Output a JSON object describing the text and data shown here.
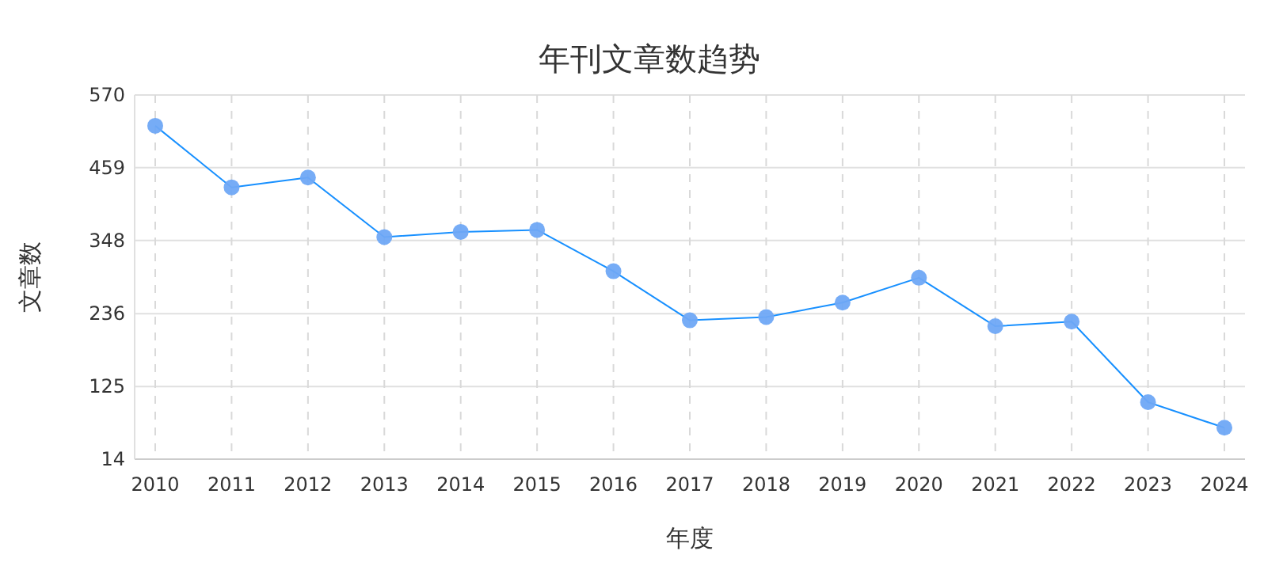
{
  "chart_data": {
    "type": "line",
    "title": "年刊文章数趋势",
    "xlabel": "年度",
    "ylabel": "文章数",
    "categories": [
      "2010",
      "2011",
      "2012",
      "2013",
      "2014",
      "2015",
      "2016",
      "2017",
      "2018",
      "2019",
      "2020",
      "2021",
      "2022",
      "2023",
      "2024"
    ],
    "series": [
      {
        "color": "#1890ff",
        "values": [
          523,
          429,
          444,
          353,
          361,
          364,
          301,
          226,
          231,
          253,
          291,
          217,
          224,
          101,
          62
        ]
      }
    ],
    "ylim": [
      14,
      570
    ],
    "yticks": [
      14,
      125,
      236,
      348,
      459,
      570
    ],
    "grid": true,
    "marker": "circle",
    "line_style": "solid"
  }
}
